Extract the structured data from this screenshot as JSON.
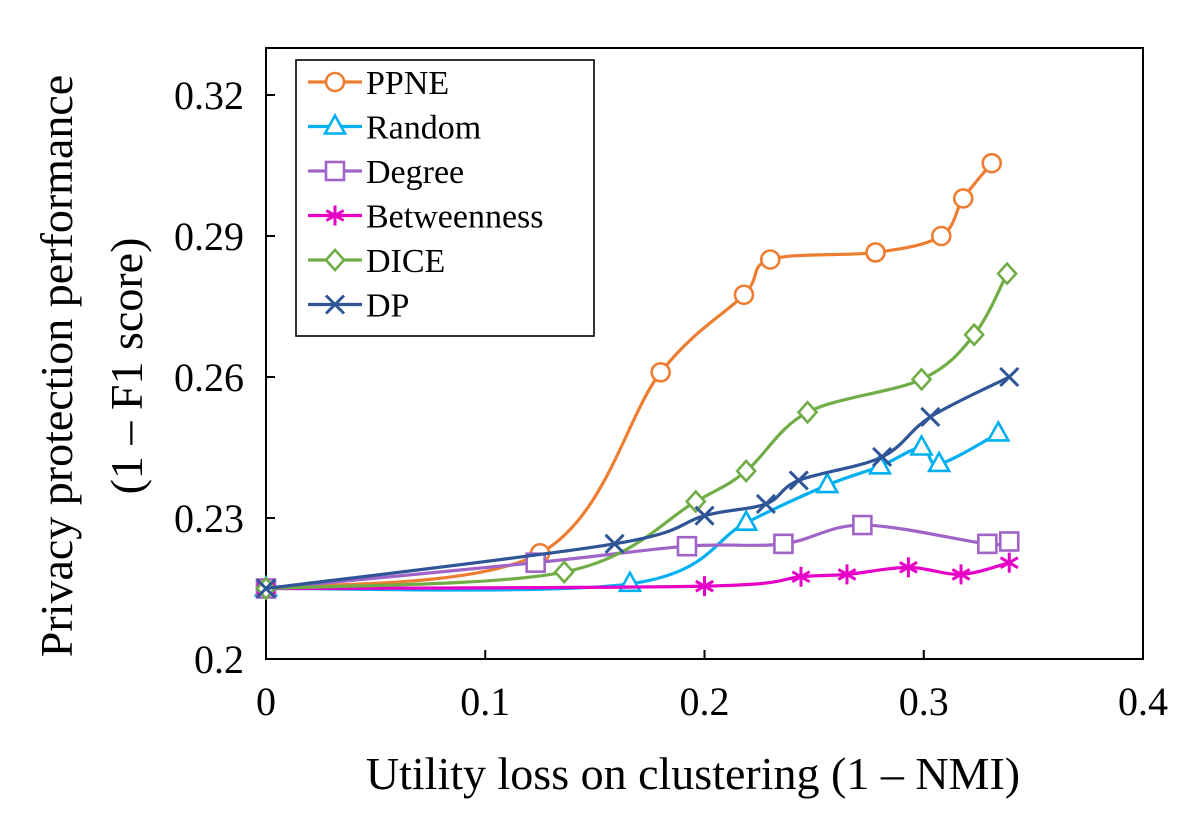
{
  "chart_data": {
    "type": "line",
    "title": "",
    "xlabel": "Utility loss on clustering (1 – NMI)",
    "ylabel_line1": "Privacy protection performance",
    "ylabel_line2": "(1 – F1 score)",
    "xlim": [
      0,
      0.4
    ],
    "ylim": [
      0.2,
      0.33
    ],
    "xticks": [
      0,
      0.1,
      0.2,
      0.3,
      0.4
    ],
    "xtick_labels": [
      "0",
      "0.1",
      "0.2",
      "0.3",
      "0.4"
    ],
    "yticks": [
      0.2,
      0.23,
      0.26,
      0.29,
      0.32
    ],
    "ytick_labels": [
      "0.2",
      "0.23",
      "0.26",
      "0.29",
      "0.32"
    ],
    "grid": false,
    "legend_position": "top-left",
    "series": [
      {
        "name": "PPNE",
        "color": "#ED7D31",
        "marker": "circle",
        "x": [
          0,
          0.125,
          0.18,
          0.218,
          0.23,
          0.278,
          0.308,
          0.318,
          0.331
        ],
        "y": [
          0.215,
          0.2225,
          0.261,
          0.2775,
          0.285,
          0.2865,
          0.29,
          0.298,
          0.3055
        ]
      },
      {
        "name": "Random",
        "color": "#00B0F0",
        "marker": "triangle",
        "x": [
          0,
          0.166,
          0.219,
          0.256,
          0.28,
          0.299,
          0.307,
          0.334
        ],
        "y": [
          0.215,
          0.216,
          0.229,
          0.237,
          0.241,
          0.245,
          0.2415,
          0.248
        ]
      },
      {
        "name": "Degree",
        "color": "#A064C8",
        "marker": "square",
        "x": [
          0,
          0.123,
          0.192,
          0.236,
          0.272,
          0.329,
          0.339
        ],
        "y": [
          0.215,
          0.2205,
          0.224,
          0.2245,
          0.2285,
          0.2245,
          0.225
        ]
      },
      {
        "name": "Betweenness",
        "color": "#E600C8",
        "marker": "asterisk",
        "x": [
          0,
          0.2,
          0.244,
          0.265,
          0.293,
          0.317,
          0.339
        ],
        "y": [
          0.215,
          0.2155,
          0.2175,
          0.218,
          0.2195,
          0.218,
          0.2205
        ]
      },
      {
        "name": "DICE",
        "color": "#70AD47",
        "marker": "diamond",
        "x": [
          0,
          0.136,
          0.196,
          0.219,
          0.247,
          0.299,
          0.323,
          0.338
        ],
        "y": [
          0.215,
          0.2185,
          0.2335,
          0.24,
          0.2525,
          0.2595,
          0.269,
          0.282
        ]
      },
      {
        "name": "DP",
        "color": "#2F5597",
        "marker": "x",
        "x": [
          0,
          0.159,
          0.2,
          0.228,
          0.243,
          0.281,
          0.303,
          0.339
        ],
        "y": [
          0.215,
          0.2245,
          0.2305,
          0.233,
          0.238,
          0.243,
          0.2515,
          0.26
        ]
      }
    ]
  }
}
